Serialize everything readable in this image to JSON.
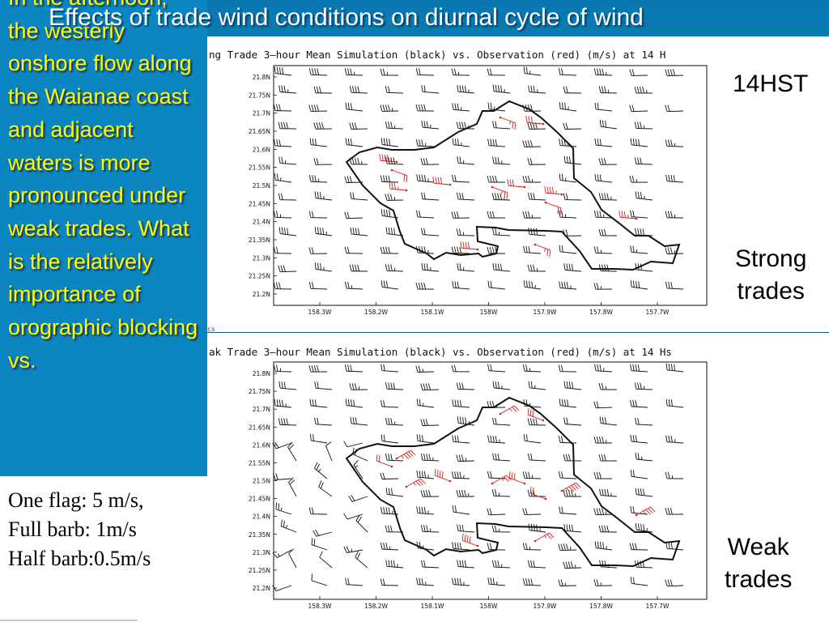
{
  "slide": {
    "title": "Effects of trade wind conditions on diurnal cycle of wind"
  },
  "callout": {
    "text": "In the afternoon, the westerly onshore flow along the Waianae coast and adjacent waters is more pronounced under weak trades.  What is the relatively importance of orographic blocking vs."
  },
  "legend": {
    "line1": "One flag: 5 m/s,",
    "line2": "Full barb: 1m/s",
    "line3": "Half barb:0.5m/s"
  },
  "labels": {
    "time": "14HST",
    "strong_line1": "Strong",
    "strong_line2": "trades",
    "weak_line1": "Weak",
    "weak_line2": "trades"
  },
  "panels": [
    {
      "id": "strong",
      "header": "ng Trade 3—hour Mean Simulation (black) vs. Observation (red) (m/s) at 14 H",
      "footer": "cs",
      "lat_ticks": [
        "21.8N",
        "21.75N",
        "21.7N",
        "21.65N",
        "21.6N",
        "21.55N",
        "21.5N",
        "21.45N",
        "21.4N",
        "21.35N",
        "21.3N",
        "21.25N",
        "21.2N"
      ],
      "lon_ticks": [
        "158.3W",
        "158.2W",
        "158.1W",
        "158W",
        "157.9W",
        "157.8W",
        "157.7W"
      ]
    },
    {
      "id": "weak",
      "header": "ak Trade 3—hour Mean Simulation (black) vs. Observation (red) (m/s) at 14 Hs",
      "lat_ticks": [
        "21.8N",
        "21.75N",
        "21.7N",
        "21.65N",
        "21.6N",
        "21.55N",
        "21.5N",
        "21.45N",
        "21.4N",
        "21.35N",
        "21.3N",
        "21.25N",
        "21.2N"
      ],
      "lon_ticks": [
        "158.3W",
        "158.2W",
        "158.1W",
        "158W",
        "157.9W",
        "157.8W",
        "157.7W"
      ]
    }
  ],
  "colors": {
    "band": "#0c86c0",
    "callout_text": "#ffff00",
    "title_text": "#ffffff",
    "simulation": "#000000",
    "observation": "#d81e1e"
  }
}
